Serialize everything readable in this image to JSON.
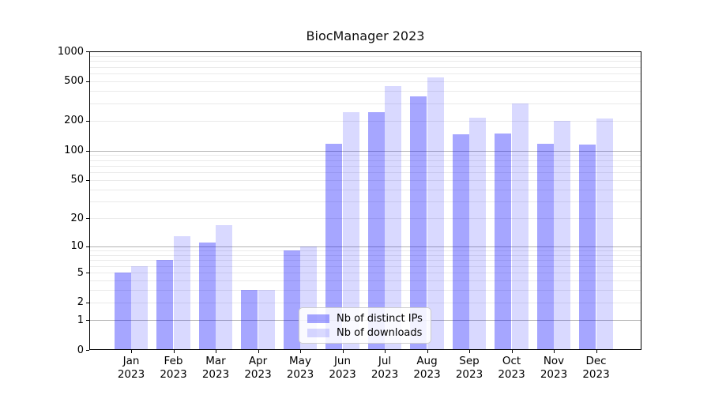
{
  "title": "BiocManager 2023",
  "legend": {
    "items": [
      {
        "label": "Nb of distinct IPs"
      },
      {
        "label": "Nb of downloads"
      }
    ]
  },
  "chart_data": {
    "type": "bar",
    "title": "BiocManager 2023",
    "categories": [
      "Jan 2023",
      "Feb 2023",
      "Mar 2023",
      "Apr 2023",
      "May 2023",
      "Jun 2023",
      "Jul 2023",
      "Aug 2023",
      "Sep 2023",
      "Oct 2023",
      "Nov 2023",
      "Dec 2023"
    ],
    "series": [
      {
        "name": "Nb of distinct IPs",
        "color": "rgba(0,0,255,0.35)",
        "values": [
          5,
          7,
          11,
          3,
          9,
          118,
          245,
          350,
          145,
          150,
          118,
          115
        ]
      },
      {
        "name": "Nb of downloads",
        "color": "rgba(0,0,255,0.15)",
        "values": [
          6,
          13,
          17,
          3,
          10,
          245,
          450,
          550,
          215,
          300,
          200,
          210
        ]
      }
    ],
    "xlabel": "",
    "ylabel": "",
    "yscale": "log1p",
    "ylim": [
      0,
      1000
    ],
    "yticks": [
      0,
      1,
      2,
      5,
      10,
      20,
      50,
      100,
      200,
      500,
      1000
    ],
    "major_gridlines": [
      1,
      10,
      100
    ],
    "minor_gridline_decades": [
      1,
      10,
      100
    ],
    "grid": true,
    "legend_position": "inside-bottom-center"
  }
}
